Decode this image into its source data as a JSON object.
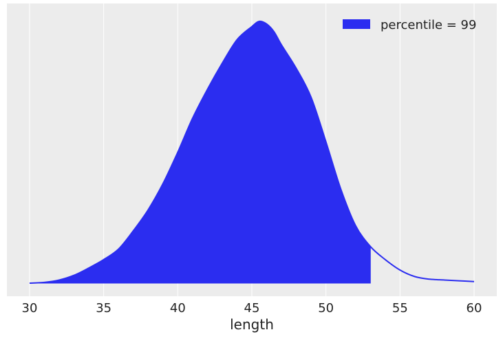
{
  "chart_data": {
    "type": "area",
    "title": "",
    "xlabel": "length",
    "ylabel": "",
    "xlim": [
      28.5,
      61.5
    ],
    "ylim": [
      0,
      1.05
    ],
    "x_ticks": [
      30,
      35,
      40,
      45,
      50,
      55,
      60
    ],
    "x_tick_labels": [
      "30",
      "35",
      "40",
      "45",
      "50",
      "55",
      "60"
    ],
    "y_ticks_shown": false,
    "grid": "vertical",
    "legend": {
      "position": "top-right",
      "entries": [
        "percentile = 99"
      ]
    },
    "background_color": "#ececec",
    "series_color": "#2b2df0",
    "shaded_up_to_x": 53,
    "series": [
      {
        "name": "percentile = 99",
        "x": [
          30,
          31,
          32,
          33,
          34,
          35,
          36,
          37,
          38,
          39,
          40,
          41,
          42,
          43,
          44,
          45,
          45.5,
          46,
          46.5,
          47,
          48,
          49,
          50,
          51,
          52,
          53,
          54,
          55,
          56,
          57,
          58,
          59,
          60
        ],
        "y": [
          0,
          0.003,
          0.012,
          0.03,
          0.058,
          0.09,
          0.13,
          0.2,
          0.28,
          0.38,
          0.5,
          0.63,
          0.74,
          0.84,
          0.93,
          0.98,
          1.0,
          0.99,
          0.96,
          0.91,
          0.82,
          0.71,
          0.54,
          0.36,
          0.22,
          0.14,
          0.09,
          0.05,
          0.025,
          0.015,
          0.012,
          0.009,
          0.006
        ]
      }
    ]
  }
}
